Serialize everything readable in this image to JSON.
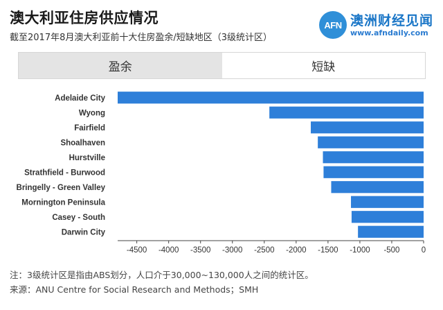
{
  "header": {
    "title": "澳大利亚住房供应情况",
    "subtitle": "截至2017年8月澳大利亚前十大住房盈余/短缺地区（3级统计区）"
  },
  "logo": {
    "mark": "AFN",
    "name": "澳洲财经见闻",
    "url": "www.afndaily.com",
    "color": "#2f8fd8"
  },
  "tabs": {
    "surplus": "盈余",
    "shortage": "短缺"
  },
  "chart_data": {
    "type": "bar",
    "orientation": "horizontal",
    "categories": [
      "Adelaide City",
      "Wyong",
      "Fairfield",
      "Shoalhaven",
      "Hurstville",
      "Strathfield - Burwood",
      "Bringelly - Green Valley",
      "Mornington Peninsula",
      "Casey - South",
      "Darwin City"
    ],
    "values": [
      -4810,
      -2420,
      -1770,
      -1660,
      -1580,
      -1570,
      -1450,
      -1140,
      -1130,
      -1030
    ],
    "xlim": [
      -4800,
      0
    ],
    "xticks": [
      -4500,
      -4000,
      -3500,
      -3000,
      -2500,
      -2000,
      -1500,
      -1000,
      -500,
      0
    ],
    "bar_color": "#2e7fd9",
    "grid": false,
    "legend": "none"
  },
  "notes": {
    "note": "注：3级统计区是指由ABS划分，人口介于30,000~130,000人之间的统计区。",
    "source": "来源：ANU Centre for Social Research and Methods；SMH"
  }
}
